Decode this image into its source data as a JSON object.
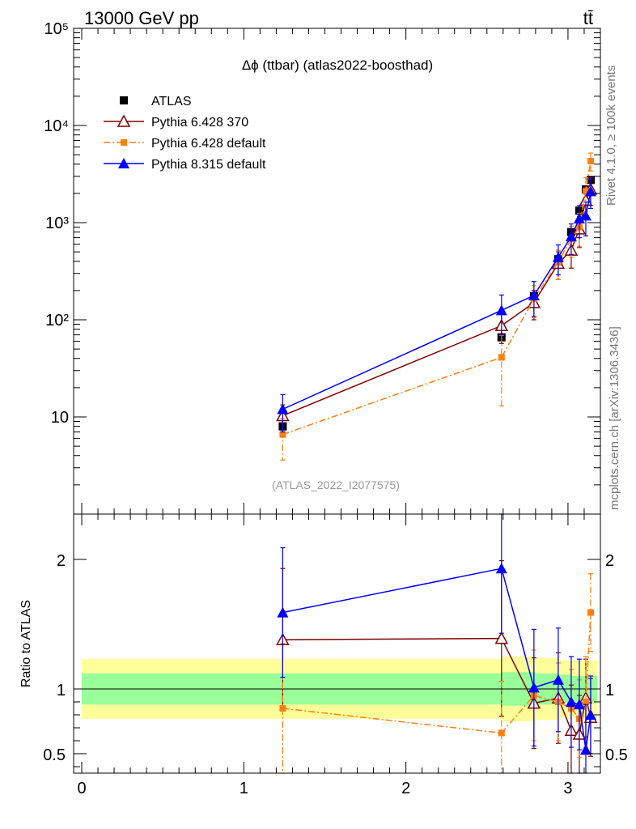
{
  "header": {
    "left": "13000 GeV pp",
    "right": "tt̄"
  },
  "side_labels": {
    "rivet": "Rivet 4.1.0, ≥ 100k events",
    "mcplots": "mcplots.cern.ch [arXiv:1306.3436]"
  },
  "chart_data": [
    {
      "type": "line",
      "role": "main",
      "title": "Δϕ (ttbar) (atlas2022-boosthad)",
      "reference_label": "(ATLAS_2022_I2077575)",
      "xlabel": "",
      "ylabel": "",
      "xlim": [
        -0.05,
        3.2
      ],
      "ylim": [
        1,
        100000
      ],
      "yscale": "log",
      "ytick_values": [
        10,
        100,
        1000,
        10000,
        100000
      ],
      "ytick_labels": [
        "10",
        "10²",
        "10³",
        "10⁴",
        "10⁵"
      ],
      "x": [
        1.24,
        2.59,
        2.79,
        2.94,
        3.02,
        3.07,
        3.11,
        3.14
      ],
      "series": [
        {
          "name": "ATLAS",
          "color": "#000000",
          "marker": "square",
          "values": [
            8,
            66,
            175,
            420,
            800,
            1330,
            2200,
            2750
          ],
          "err": [
            1.2,
            8,
            15,
            30,
            60,
            90,
            150,
            200
          ]
        },
        {
          "name": "Pythia 6.428 370",
          "color": "#800000",
          "marker": "open-triangle",
          "values": [
            10.3,
            87,
            150,
            380,
            520,
            860,
            1700,
            2200
          ],
          "err": [
            3,
            30,
            50,
            120,
            180,
            300,
            600,
            700
          ]
        },
        {
          "name": "Pythia 6.428 default",
          "color": "#ff7f0e",
          "marker": "small-square",
          "values": [
            6.6,
            41,
            165,
            390,
            680,
            900,
            2100,
            4300
          ],
          "err": [
            3,
            28,
            60,
            130,
            240,
            350,
            800,
            900
          ]
        },
        {
          "name": "Pythia 8.315 default",
          "color": "#0000ff",
          "marker": "triangle",
          "values": [
            12,
            125,
            178,
            440,
            720,
            1100,
            1180,
            2100
          ],
          "err": [
            5,
            55,
            70,
            150,
            250,
            400,
            450,
            700
          ]
        }
      ]
    },
    {
      "type": "line",
      "role": "ratio",
      "ylabel": "Ratio to ATLAS",
      "xlim": [
        -0.05,
        3.2
      ],
      "ylim": [
        0.35,
        2.35
      ],
      "ytick_values": [
        0.5,
        1,
        2
      ],
      "ytick_labels": [
        "0.5",
        "1",
        "2"
      ],
      "xtick_values": [
        0,
        1,
        2,
        3
      ],
      "xtick_labels": [
        "0",
        "1",
        "2",
        "3"
      ],
      "band": {
        "x": [
          0,
          1.24,
          2.5,
          2.59,
          2.8,
          2.94,
          3.02,
          3.07,
          3.11,
          3.14
        ],
        "inner_half": [
          0.12,
          0.12,
          0.12,
          0.13,
          0.12,
          0.11,
          0.1,
          0.1,
          0.1,
          0.1
        ],
        "outer_half": [
          0.23,
          0.23,
          0.23,
          0.25,
          0.24,
          0.22,
          0.22,
          0.22,
          0.22,
          0.22
        ],
        "inner_color": "#99ff99",
        "outer_color": "#ffff99"
      },
      "x": [
        1.24,
        2.59,
        2.79,
        2.94,
        3.02,
        3.07,
        3.11,
        3.14
      ],
      "series": [
        {
          "name": "Pythia 6.428 370",
          "color": "#800000",
          "marker": "open-triangle",
          "values": [
            1.38,
            1.39,
            0.89,
            0.93,
            0.68,
            0.65,
            0.93,
            0.78
          ],
          "err": [
            0.55,
            0.6,
            0.35,
            0.35,
            0.35,
            0.3,
            0.3,
            0.3
          ]
        },
        {
          "name": "Pythia 6.428 default",
          "color": "#ff7f0e",
          "marker": "small-square",
          "values": [
            0.85,
            0.66,
            0.95,
            0.9,
            0.85,
            0.77,
            0.9,
            1.59
          ],
          "err": [
            0.5,
            0.4,
            0.35,
            0.3,
            0.3,
            0.3,
            0.35,
            0.3
          ]
        },
        {
          "name": "Pythia 8.315 default",
          "color": "#0000ff",
          "marker": "triangle",
          "values": [
            1.59,
            1.93,
            1.01,
            1.07,
            0.9,
            0.88,
            0.53,
            0.8
          ],
          "err": [
            0.5,
            0.5,
            0.45,
            0.4,
            0.35,
            0.35,
            0.35,
            0.3
          ]
        }
      ]
    }
  ]
}
